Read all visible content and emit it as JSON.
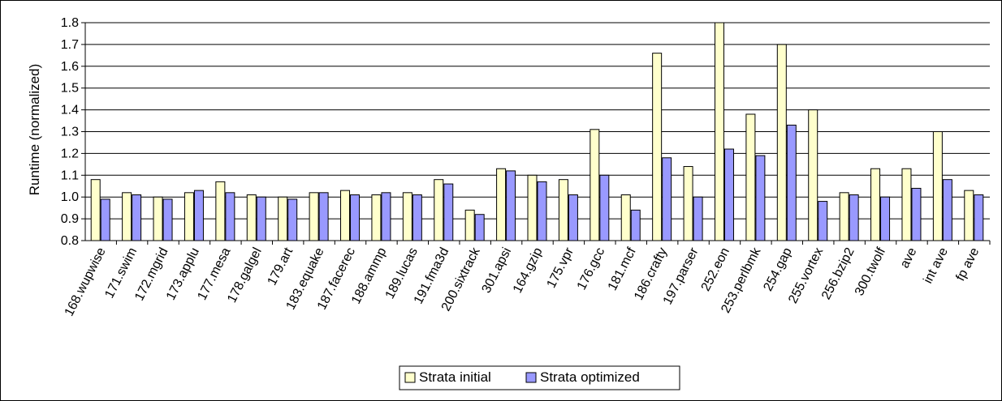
{
  "chart_data": {
    "type": "bar",
    "ylabel": "Runtime (normalized)",
    "ylim": [
      0.8,
      1.8
    ],
    "yticks": [
      "0.8",
      "0.9",
      "1.0",
      "1.1",
      "1.2",
      "1.3",
      "1.4",
      "1.5",
      "1.6",
      "1.7",
      "1.8"
    ],
    "grid": true,
    "legend_position": "bottom",
    "categories": [
      "168.wupwise",
      "171.swim",
      "172.mgrid",
      "173.applu",
      "177.mesa",
      "178.galgel",
      "179.art",
      "183.equake",
      "187.facerec",
      "188.ammp",
      "189.lucas",
      "191.fma3d",
      "200.sixtrack",
      "301.apsi",
      "164.gzip",
      "175.vpr",
      "176.gcc",
      "181.mcf",
      "186.crafty",
      "197.parser",
      "252.eon",
      "253.perlbmk",
      "254.gap",
      "255.vortex",
      "256.bzip2",
      "300.twolf",
      "ave",
      "int ave",
      "fp ave"
    ],
    "series": [
      {
        "name": "Strata initial",
        "color": "#ffffcc",
        "values": [
          1.08,
          1.02,
          1.0,
          1.02,
          1.07,
          1.01,
          1.0,
          1.02,
          1.03,
          1.01,
          1.02,
          1.08,
          0.94,
          1.13,
          1.1,
          1.08,
          1.31,
          1.01,
          1.66,
          1.14,
          1.82,
          1.38,
          1.7,
          1.4,
          1.02,
          1.13,
          1.13,
          1.3,
          1.03
        ]
      },
      {
        "name": "Strata optimized",
        "color": "#9999ff",
        "values": [
          0.99,
          1.01,
          0.99,
          1.03,
          1.02,
          1.0,
          0.99,
          1.02,
          1.01,
          1.02,
          1.01,
          1.06,
          0.92,
          1.12,
          1.07,
          1.01,
          1.1,
          0.94,
          1.18,
          1.0,
          1.22,
          1.19,
          1.33,
          0.98,
          1.01,
          1.0,
          1.04,
          1.08,
          1.01
        ]
      }
    ]
  }
}
